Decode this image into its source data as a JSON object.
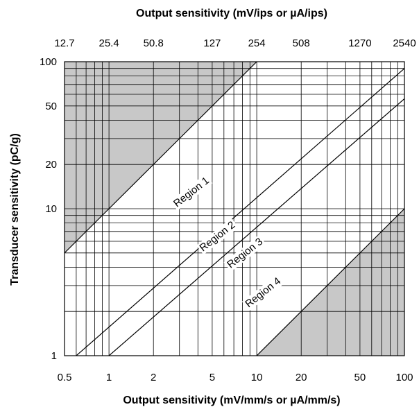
{
  "chart_data": {
    "type": "line",
    "scale": "log-log",
    "x_axis_bottom": {
      "label": "Output sensitivity (mV/mm/s or µA/mm/s)",
      "range": [
        0.5,
        100
      ],
      "ticks": [
        {
          "value": 0.5,
          "label": "0.5"
        },
        {
          "value": 1,
          "label": "1"
        },
        {
          "value": 2,
          "label": "2"
        },
        {
          "value": 5,
          "label": "5"
        },
        {
          "value": 10,
          "label": "10"
        },
        {
          "value": 20,
          "label": "20"
        },
        {
          "value": 50,
          "label": "50"
        },
        {
          "value": 100,
          "label": "100"
        }
      ]
    },
    "x_axis_top": {
      "label": "Output sensitivity (mV/ips or µA/ips)",
      "ticks": [
        {
          "value": 0.5,
          "label": "12.7"
        },
        {
          "value": 1,
          "label": "25.4"
        },
        {
          "value": 2,
          "label": "50.8"
        },
        {
          "value": 5,
          "label": "127"
        },
        {
          "value": 10,
          "label": "254"
        },
        {
          "value": 20,
          "label": "508"
        },
        {
          "value": 50,
          "label": "1270"
        },
        {
          "value": 100,
          "label": "2540"
        }
      ]
    },
    "y_axis": {
      "label": "Transducer sensitivity (pC/g)",
      "range": [
        1,
        100
      ],
      "ticks": [
        {
          "value": 1,
          "label": "1"
        },
        {
          "value": 10,
          "label": "10"
        },
        {
          "value": 20,
          "label": "20"
        },
        {
          "value": 50,
          "label": "50"
        },
        {
          "value": 100,
          "label": "100"
        }
      ]
    },
    "grid": true,
    "region_boundaries": [
      {
        "name": "Region 1",
        "points": [
          [
            0.5,
            5
          ],
          [
            10,
            100
          ]
        ]
      },
      {
        "name": "Region 2",
        "points": [
          [
            0.6,
            1
          ],
          [
            100,
            90
          ]
        ]
      },
      {
        "name": "Region 3",
        "points": [
          [
            1,
            1
          ],
          [
            100,
            56
          ]
        ]
      },
      {
        "name": "Region 4",
        "points": [
          [
            10,
            1
          ],
          [
            100,
            10
          ]
        ]
      }
    ],
    "shaded_regions": [
      {
        "polygon": [
          [
            0.5,
            5
          ],
          [
            0.5,
            100
          ],
          [
            10,
            100
          ]
        ],
        "color": "#c8c8c8"
      },
      {
        "polygon": [
          [
            10,
            1
          ],
          [
            100,
            1
          ],
          [
            100,
            10
          ]
        ],
        "color": "#c8c8c8"
      }
    ],
    "region_labels": [
      {
        "text": "Region 1",
        "x": 3.6,
        "y": 13
      },
      {
        "text": "Region 2",
        "x": 5.4,
        "y": 6.5
      },
      {
        "text": "Region 3",
        "x": 8.3,
        "y": 5.0
      },
      {
        "text": "Region 4",
        "x": 11.0,
        "y": 2.7
      }
    ]
  }
}
